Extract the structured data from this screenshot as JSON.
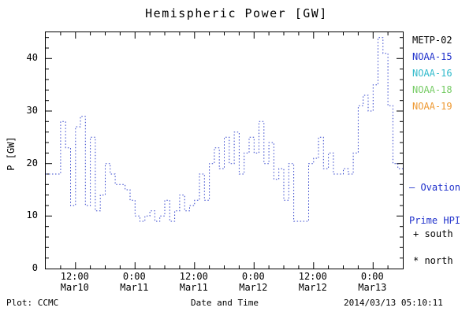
{
  "title": "Hemispheric Power [GW]",
  "axes": {
    "ylabel": "P [GW]",
    "xlabel": "Date and Time"
  },
  "footer": {
    "plot_source": "Plot: CCMC",
    "timestamp": "2014/03/13 05:10:11"
  },
  "legend": {
    "satellites": [
      {
        "label": "METP-02",
        "color": "#000000"
      },
      {
        "label": "NOAA-15",
        "color": "#2233cc"
      },
      {
        "label": "NOAA-16",
        "color": "#33bbcc"
      },
      {
        "label": "NOAA-18",
        "color": "#77cc66"
      },
      {
        "label": "NOAA-19",
        "color": "#ee9933"
      }
    ],
    "ovation_line1": "— Ovation",
    "ovation_line2": "Prime HPI",
    "ovation_color": "#2233cc",
    "south_label": "+ south",
    "north_label": "* north"
  },
  "chart_data": {
    "type": "line",
    "title": "Hemispheric Power [GW]",
    "xlabel": "Date and Time",
    "ylabel": "P [GW]",
    "x_start": "2014-03-10 06:00",
    "x_end": "2014-03-13 06:00",
    "x_step_hours": 1,
    "x_range_hours": [
      0,
      72
    ],
    "ylim": [
      0,
      45
    ],
    "y_ticks": [
      0,
      10,
      20,
      30,
      40
    ],
    "x_ticks": [
      {
        "hour": 6,
        "time": "12:00",
        "date": "Mar10"
      },
      {
        "hour": 18,
        "time": "0:00",
        "date": "Mar11"
      },
      {
        "hour": 30,
        "time": "12:00",
        "date": "Mar11"
      },
      {
        "hour": 42,
        "time": "0:00",
        "date": "Mar12"
      },
      {
        "hour": 54,
        "time": "12:00",
        "date": "Mar12"
      },
      {
        "hour": 66,
        "time": "0:00",
        "date": "Mar13"
      }
    ],
    "series": [
      {
        "name": "Ovation Prime HPI",
        "style": "dotted-step",
        "color": "#3344cc",
        "values": [
          18,
          18,
          18,
          28,
          23,
          12,
          27,
          29,
          12,
          25,
          11,
          14,
          20,
          18,
          16,
          16,
          15,
          13,
          10,
          9,
          10,
          11,
          9,
          10,
          13,
          9,
          11,
          14,
          11,
          12,
          13,
          18,
          13,
          20,
          23,
          19,
          25,
          20,
          26,
          18,
          22,
          25,
          22,
          28,
          20,
          24,
          17,
          19,
          13,
          20,
          9,
          9,
          9,
          20,
          21,
          25,
          19,
          22,
          18,
          18,
          19,
          18,
          22,
          31,
          33,
          30,
          35,
          44,
          41,
          31,
          20,
          19
        ]
      }
    ],
    "grid": false,
    "legend_position": "right"
  }
}
